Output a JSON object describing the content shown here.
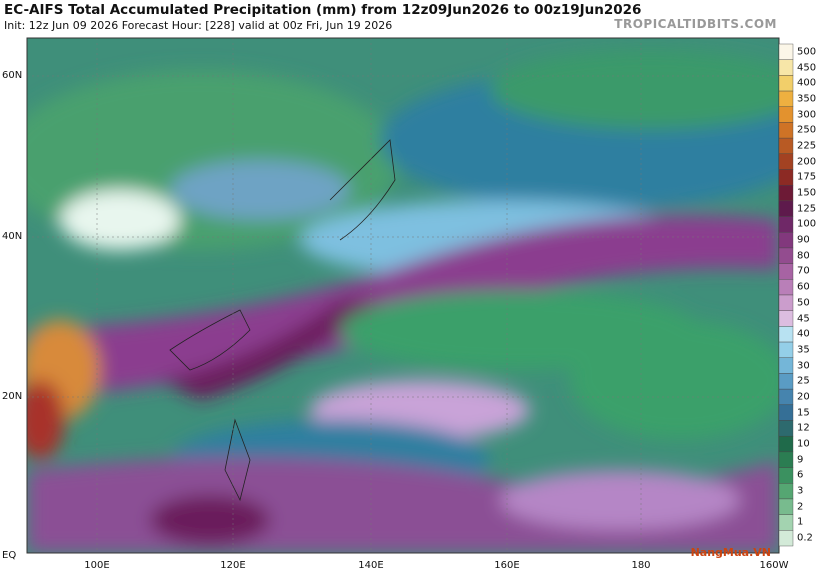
{
  "header": {
    "title": "EC-AIFS Total Accumulated Precipitation (mm) from 12z09Jun2026 to 00z19Jun2026",
    "subtitle": "Init: 12z Jun 09 2026   Forecast Hour: [228]   valid at 00z Fri, Jun 19 2026",
    "brand": "TROPICALTIDBITS.COM"
  },
  "latitudes": [
    "60N",
    "40N",
    "20N",
    "EQ"
  ],
  "longitudes": [
    "100E",
    "120E",
    "140E",
    "160E",
    "180",
    "160W"
  ],
  "colorbar": [
    {
      "label": "500",
      "color": "#fbf6e8"
    },
    {
      "label": "450",
      "color": "#f7e6a8"
    },
    {
      "label": "400",
      "color": "#f2cf6a"
    },
    {
      "label": "350",
      "color": "#eeb040"
    },
    {
      "label": "300",
      "color": "#e3922e"
    },
    {
      "label": "250",
      "color": "#cf7326"
    },
    {
      "label": "225",
      "color": "#b85a24"
    },
    {
      "label": "200",
      "color": "#a34222"
    },
    {
      "label": "175",
      "color": "#8c2a24"
    },
    {
      "label": "150",
      "color": "#6d1a36"
    },
    {
      "label": "125",
      "color": "#5e1a4c"
    },
    {
      "label": "100",
      "color": "#6f2867"
    },
    {
      "label": "90",
      "color": "#82387d"
    },
    {
      "label": "80",
      "color": "#934c8f"
    },
    {
      "label": "70",
      "color": "#a763a3"
    },
    {
      "label": "60",
      "color": "#b97fb8"
    },
    {
      "label": "50",
      "color": "#cb9dcc"
    },
    {
      "label": "45",
      "color": "#dcbde0"
    },
    {
      "label": "40",
      "color": "#b8e2f2"
    },
    {
      "label": "35",
      "color": "#94cfe8"
    },
    {
      "label": "30",
      "color": "#74b6d8"
    },
    {
      "label": "25",
      "color": "#5a9cc4"
    },
    {
      "label": "20",
      "color": "#4684ae"
    },
    {
      "label": "15",
      "color": "#356f96"
    },
    {
      "label": "12",
      "color": "#2d6a6e"
    },
    {
      "label": "10",
      "color": "#1f6a4a"
    },
    {
      "label": "9",
      "color": "#2b7d52"
    },
    {
      "label": "6",
      "color": "#3b9160"
    },
    {
      "label": "3",
      "color": "#55a672"
    },
    {
      "label": "2",
      "color": "#78bb8e"
    },
    {
      "label": "1",
      "color": "#a3d3b0"
    },
    {
      "label": "0.2",
      "color": "#d3ead8"
    }
  ],
  "watermark": "NangMua.VN"
}
